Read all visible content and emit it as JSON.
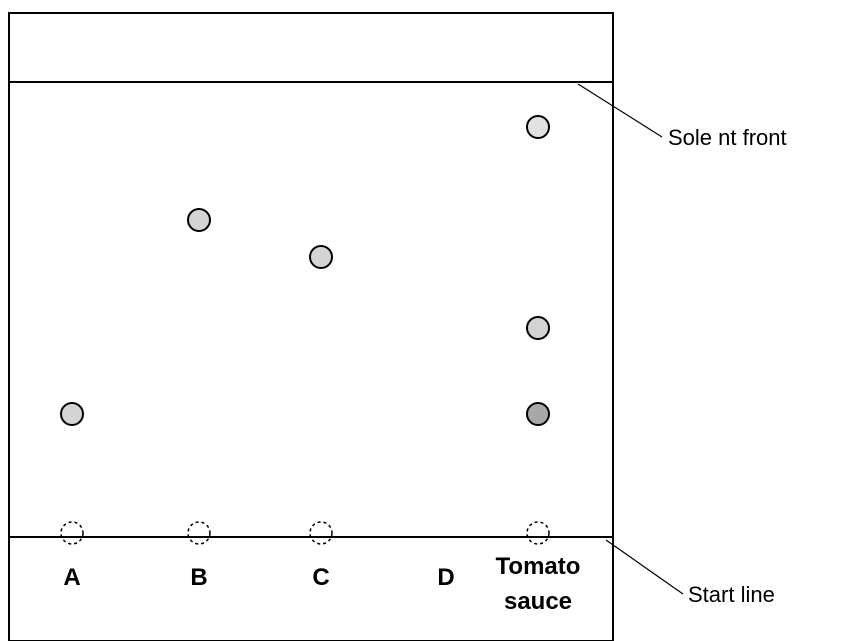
{
  "labels": {
    "solvent_front": "Sole nt front",
    "start_line": "Start line"
  },
  "lanes": [
    {
      "id": "A",
      "label": "A",
      "spots": [
        {
          "fill": "#d4d4d4"
        }
      ]
    },
    {
      "id": "B",
      "label": "B",
      "spots": [
        {
          "fill": "#d4d4d4"
        }
      ]
    },
    {
      "id": "C",
      "label": "C",
      "spots": [
        {
          "fill": "#d4d4d4"
        }
      ]
    },
    {
      "id": "D",
      "label": "D",
      "spots": []
    },
    {
      "id": "tomato",
      "label_line1": "Tomato",
      "label_line2": "sauce",
      "spots": [
        {
          "fill": "#e2e2e2"
        },
        {
          "fill": "#d4d4d4"
        },
        {
          "fill": "#a8a8a8"
        }
      ]
    }
  ],
  "colors": {
    "stroke": "#000000",
    "spot_default": "#d4d4d4"
  }
}
